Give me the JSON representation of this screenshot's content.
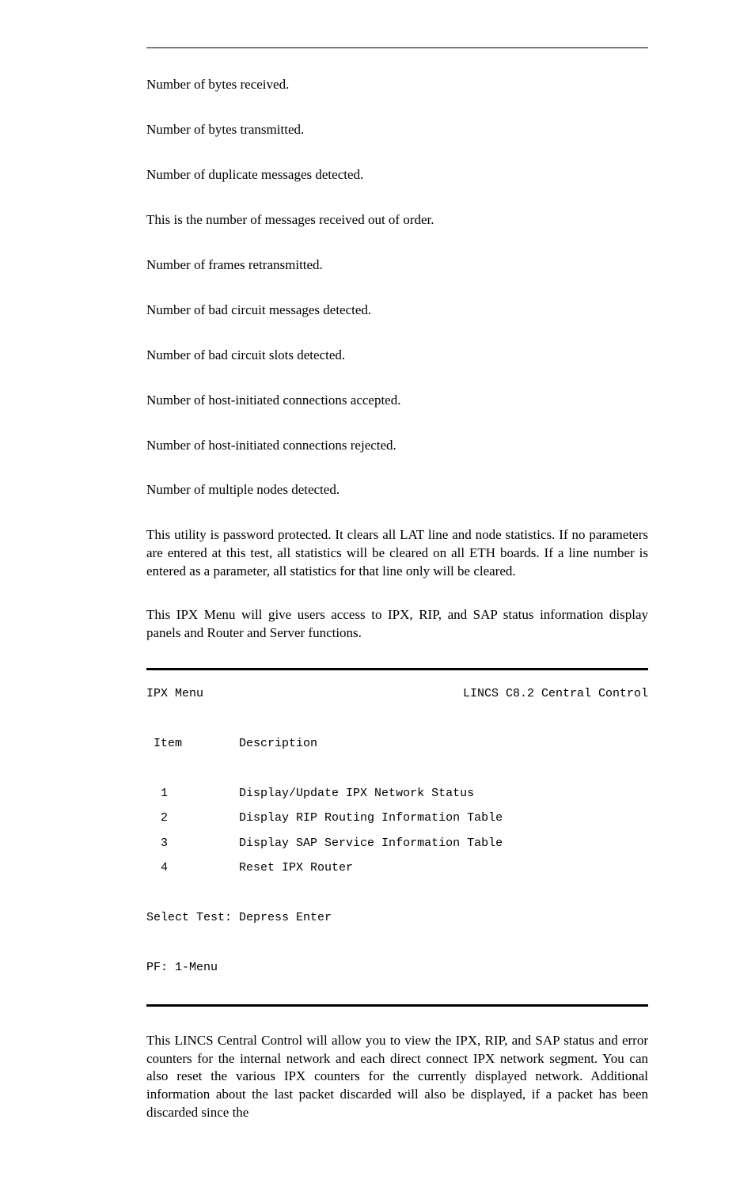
{
  "definitions": [
    "Number of bytes received.",
    "Number of bytes transmitted.",
    "Number of duplicate messages detected.",
    "This is the number of messages received out of order.",
    "Number of frames retransmitted.",
    "Number of bad circuit messages detected.",
    "Number of bad circuit slots detected.",
    "Number of host-initiated connections accepted.",
    "Number of host-initiated connections rejected.",
    "Number of multiple nodes detected."
  ],
  "clear_paragraph": "This utility is password protected. It clears all LAT line and node statistics. If no parameters are entered at this test, all statistics will be cleared on all ETH boards. If a line number is entered as a parameter, all statistics for that line only will be cleared.",
  "ipx_intro": "This IPX Menu will give users access to IPX, RIP, and SAP status information display panels and Router and Server functions.",
  "menu": {
    "title_left": "IPX Menu",
    "title_right": "LINCS C8.2 Central Control",
    "columns_header_item": " Item",
    "columns_header_desc": "Description",
    "rows": [
      {
        "item": "  1",
        "desc": "Display/Update IPX Network Status"
      },
      {
        "item": "  2",
        "desc": "Display RIP Routing Information Table"
      },
      {
        "item": "  3",
        "desc": "Display SAP Service Information Table"
      },
      {
        "item": "  4",
        "desc": "Reset IPX Router"
      }
    ],
    "select_prompt": "Select Test: Depress Enter",
    "pf_line": "PF: 1-Menu"
  },
  "closing_paragraph": "This LINCS Central Control will allow you to view the IPX, RIP, and SAP status and error counters for the internal network and each direct connect IPX network segment. You can also reset the various IPX counters for the currently displayed network. Additional information about the last packet discarded will also be displayed, if a packet has been discarded since the"
}
